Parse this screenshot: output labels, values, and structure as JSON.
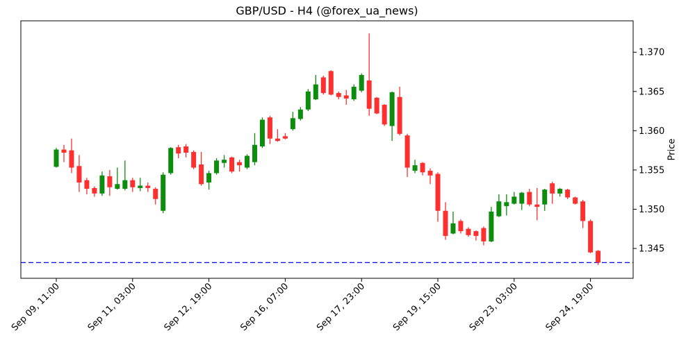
{
  "chart_data": {
    "type": "candlestick",
    "title": "GBP/USD - H4 (@forex_ua_news)",
    "ylabel": "Price",
    "xlabel": "",
    "grid": false,
    "legend": "none",
    "ylim": [
      1.3412,
      1.374
    ],
    "y_ticks": [
      1.345,
      1.35,
      1.355,
      1.36,
      1.365,
      1.37
    ],
    "y_tick_decimals": 3,
    "x_ticks": [
      {
        "index": 0,
        "label": "Sep 09, 11:00"
      },
      {
        "index": 10,
        "label": "Sep 11, 03:00"
      },
      {
        "index": 20,
        "label": "Sep 12, 19:00"
      },
      {
        "index": 30,
        "label": "Sep 16, 07:00"
      },
      {
        "index": 40,
        "label": "Sep 17, 23:00"
      },
      {
        "index": 50,
        "label": "Sep 19, 15:00"
      },
      {
        "index": 60,
        "label": "Sep 23, 03:00"
      },
      {
        "index": 70,
        "label": "Sep 24, 19:00"
      }
    ],
    "hline": {
      "value": 1.3432,
      "style": "dashed",
      "color": "#0000ff"
    },
    "colors": {
      "up": "#0e8c0e",
      "down": "#fd3030",
      "spine": "#000000",
      "background": "#ffffff"
    },
    "ohlc_format": [
      "open",
      "high",
      "low",
      "close"
    ],
    "candles": [
      [
        1.3554,
        1.3578,
        1.3553,
        1.3576
      ],
      [
        1.3576,
        1.3582,
        1.356,
        1.3572
      ],
      [
        1.3575,
        1.359,
        1.3546,
        1.3553
      ],
      [
        1.3555,
        1.3569,
        1.3522,
        1.3534
      ],
      [
        1.3537,
        1.354,
        1.3519,
        1.3526
      ],
      [
        1.3527,
        1.3529,
        1.3516,
        1.352
      ],
      [
        1.352,
        1.3548,
        1.3517,
        1.3543
      ],
      [
        1.3542,
        1.355,
        1.3517,
        1.3528
      ],
      [
        1.3526,
        1.3553,
        1.3525,
        1.3532
      ],
      [
        1.3526,
        1.3562,
        1.3524,
        1.3537
      ],
      [
        1.3537,
        1.354,
        1.3522,
        1.3528
      ],
      [
        1.3527,
        1.354,
        1.3523,
        1.353
      ],
      [
        1.353,
        1.3534,
        1.3522,
        1.3527
      ],
      [
        1.3526,
        1.3528,
        1.3506,
        1.3513
      ],
      [
        1.3498,
        1.3547,
        1.3495,
        1.3544
      ],
      [
        1.3546,
        1.3579,
        1.3544,
        1.3578
      ],
      [
        1.3579,
        1.3582,
        1.3565,
        1.3571
      ],
      [
        1.358,
        1.3583,
        1.3566,
        1.3572
      ],
      [
        1.3573,
        1.3575,
        1.3551,
        1.3553
      ],
      [
        1.3557,
        1.3573,
        1.353,
        1.3532
      ],
      [
        1.3534,
        1.3549,
        1.3525,
        1.3546
      ],
      [
        1.3546,
        1.3565,
        1.3544,
        1.3562
      ],
      [
        1.3559,
        1.3569,
        1.3553,
        1.3563
      ],
      [
        1.3566,
        1.3567,
        1.3546,
        1.3548
      ],
      [
        1.356,
        1.3563,
        1.3548,
        1.3556
      ],
      [
        1.3553,
        1.357,
        1.3551,
        1.3568
      ],
      [
        1.356,
        1.3597,
        1.3556,
        1.3582
      ],
      [
        1.358,
        1.3617,
        1.3578,
        1.3614
      ],
      [
        1.3617,
        1.3619,
        1.3583,
        1.359
      ],
      [
        1.359,
        1.3602,
        1.3586,
        1.3587
      ],
      [
        1.3593,
        1.3597,
        1.3589,
        1.359
      ],
      [
        1.3602,
        1.3624,
        1.36,
        1.3616
      ],
      [
        1.3615,
        1.363,
        1.3613,
        1.3627
      ],
      [
        1.3627,
        1.3653,
        1.3625,
        1.365
      ],
      [
        1.364,
        1.3671,
        1.3639,
        1.3659
      ],
      [
        1.3668,
        1.367,
        1.3646,
        1.3648
      ],
      [
        1.3676,
        1.3677,
        1.3645,
        1.3646
      ],
      [
        1.3648,
        1.365,
        1.364,
        1.3643
      ],
      [
        1.3645,
        1.3652,
        1.3633,
        1.3641
      ],
      [
        1.364,
        1.3659,
        1.3638,
        1.3656
      ],
      [
        1.3651,
        1.3673,
        1.3649,
        1.3671
      ],
      [
        1.3664,
        1.3724,
        1.3619,
        1.3628
      ],
      [
        1.3642,
        1.3643,
        1.3621,
        1.3622
      ],
      [
        1.3633,
        1.3634,
        1.3606,
        1.3608
      ],
      [
        1.3606,
        1.365,
        1.3587,
        1.3649
      ],
      [
        1.3643,
        1.3656,
        1.3594,
        1.3596
      ],
      [
        1.3594,
        1.3596,
        1.3541,
        1.3553
      ],
      [
        1.3549,
        1.3563,
        1.3546,
        1.3556
      ],
      [
        1.3559,
        1.356,
        1.3543,
        1.3547
      ],
      [
        1.3549,
        1.3552,
        1.3532,
        1.3543
      ],
      [
        1.3545,
        1.3547,
        1.3484,
        1.3498
      ],
      [
        1.3498,
        1.3509,
        1.3461,
        1.3466
      ],
      [
        1.3469,
        1.3497,
        1.3468,
        1.3482
      ],
      [
        1.3485,
        1.3487,
        1.3469,
        1.3472
      ],
      [
        1.3475,
        1.3477,
        1.3465,
        1.3467
      ],
      [
        1.3472,
        1.3473,
        1.346,
        1.3466
      ],
      [
        1.3476,
        1.3478,
        1.3454,
        1.3459
      ],
      [
        1.3459,
        1.3503,
        1.3458,
        1.3497
      ],
      [
        1.3491,
        1.3519,
        1.349,
        1.351
      ],
      [
        1.3504,
        1.3519,
        1.3492,
        1.3509
      ],
      [
        1.3507,
        1.3522,
        1.3506,
        1.3516
      ],
      [
        1.3507,
        1.3522,
        1.3499,
        1.3521
      ],
      [
        1.3522,
        1.3526,
        1.3504,
        1.3506
      ],
      [
        1.3506,
        1.3527,
        1.3486,
        1.3503
      ],
      [
        1.3506,
        1.3526,
        1.3498,
        1.3525
      ],
      [
        1.3533,
        1.3535,
        1.3507,
        1.352
      ],
      [
        1.352,
        1.3527,
        1.3516,
        1.3526
      ],
      [
        1.3525,
        1.3526,
        1.3513,
        1.3515
      ],
      [
        1.3515,
        1.3516,
        1.3506,
        1.3507
      ],
      [
        1.351,
        1.3512,
        1.3476,
        1.3485
      ],
      [
        1.3485,
        1.3487,
        1.3444,
        1.3445
      ],
      [
        1.3447,
        1.3448,
        1.3429,
        1.3432
      ]
    ]
  }
}
